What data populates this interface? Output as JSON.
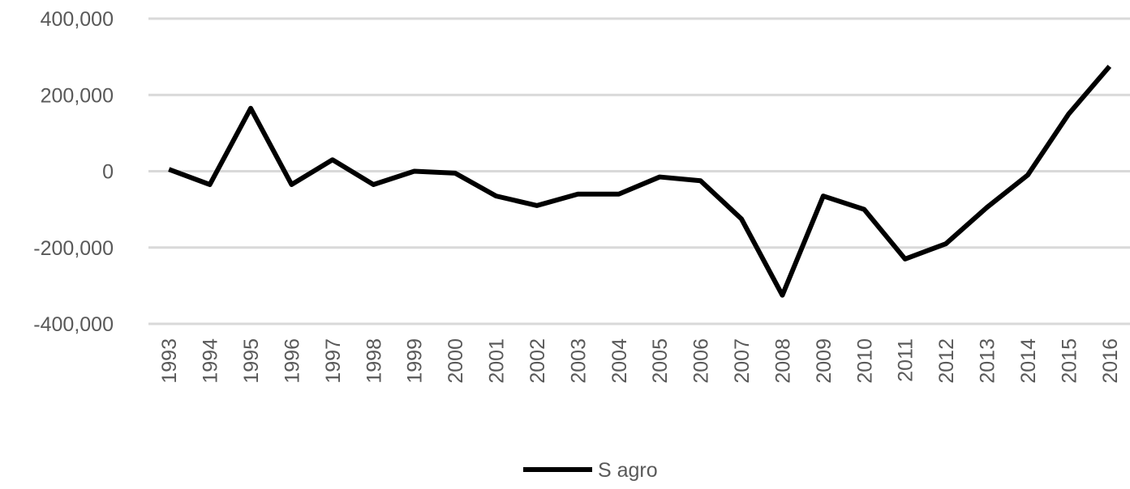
{
  "chart_data": {
    "type": "line",
    "categories": [
      "1993",
      "1994",
      "1995",
      "1996",
      "1997",
      "1998",
      "1999",
      "2000",
      "2001",
      "2002",
      "2003",
      "2004",
      "2005",
      "2006",
      "2007",
      "2008",
      "2009",
      "2010",
      "2011",
      "2012",
      "2013",
      "2014",
      "2015",
      "2016"
    ],
    "series": [
      {
        "name": "S agro",
        "color": "#000000",
        "values": [
          5000,
          -35000,
          165000,
          -35000,
          30000,
          -35000,
          0,
          -5000,
          -65000,
          -90000,
          -60000,
          -60000,
          -15000,
          -25000,
          -125000,
          -325000,
          -65000,
          -100000,
          -230000,
          -190000,
          -95000,
          -10000,
          150000,
          275000
        ]
      }
    ],
    "ylim": [
      -400000,
      400000
    ],
    "yticks": [
      {
        "value": -400000,
        "label": "-400,000"
      },
      {
        "value": -200000,
        "label": "-200,000"
      },
      0,
      {
        "value": 200000,
        "label": "200,000"
      },
      {
        "value": 400000,
        "label": "400,000"
      }
    ],
    "grid": true,
    "legend": "bottom"
  }
}
